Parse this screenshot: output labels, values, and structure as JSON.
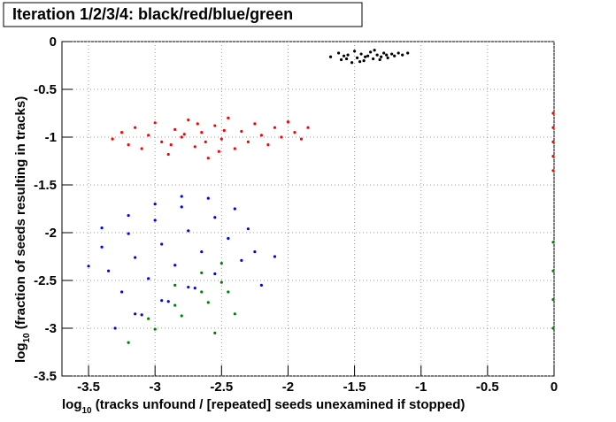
{
  "chart_data": {
    "type": "scatter",
    "title": "Iteration 1/2/3/4: black/red/blue/green",
    "x_label": {
      "base": "log",
      "sub": "10",
      "text": " (tracks unfound / [repeated] seeds unexamined if stopped)"
    },
    "y_label": {
      "base": "log",
      "sub": "10",
      "text": " (fraction of seeds resulting in tracks)"
    },
    "xlim": [
      -3.7,
      0
    ],
    "ylim": [
      -3.5,
      0
    ],
    "xticks": [
      -3.5,
      -3,
      -2.5,
      -2,
      -1.5,
      -1,
      -0.5,
      0
    ],
    "yticks": [
      0,
      -0.5,
      -1,
      -1.5,
      -2,
      -2.5,
      -3,
      -3.5
    ],
    "grid": true,
    "series": [
      {
        "color": "#000000",
        "x": [
          -1.68,
          -1.62,
          -1.6,
          -1.55,
          -1.52,
          -1.5,
          -1.48,
          -1.45,
          -1.43,
          -1.4,
          -1.38,
          -1.36,
          -1.33,
          -1.3,
          -1.28,
          -1.25,
          -1.22,
          -1.2,
          -1.17,
          -1.14,
          -1.1,
          -1.56,
          -1.46,
          -1.35,
          -1.42,
          -1.31,
          -1.58,
          -1.26
        ],
        "y": [
          -0.16,
          -0.12,
          -0.19,
          -0.14,
          -0.22,
          -0.1,
          -0.17,
          -0.13,
          -0.2,
          -0.15,
          -0.11,
          -0.18,
          -0.14,
          -0.16,
          -0.12,
          -0.17,
          -0.13,
          -0.15,
          -0.12,
          -0.14,
          -0.12,
          -0.18,
          -0.21,
          -0.09,
          -0.16,
          -0.19,
          -0.15,
          -0.14
        ]
      },
      {
        "color": "#ff0000",
        "x": [
          -3.32,
          -3.25,
          -3.2,
          -3.15,
          -3.1,
          -3.05,
          -3,
          -2.95,
          -2.9,
          -2.85,
          -2.8,
          -2.75,
          -2.7,
          -2.65,
          -2.6,
          -2.55,
          -2.5,
          -2.45,
          -2.4,
          -2.35,
          -2.3,
          -2.25,
          -2.2,
          -2.15,
          -2.1,
          -2.05,
          -2,
          -1.95,
          -1.9,
          -1.85,
          -2.78,
          -2.62,
          -2.48,
          -2.88,
          -2.52,
          -2.68,
          0,
          0,
          0,
          0,
          0
        ],
        "y": [
          -1.02,
          -0.95,
          -1.08,
          -0.9,
          -1.12,
          -0.98,
          -0.85,
          -1.05,
          -1.18,
          -0.92,
          -1,
          -0.82,
          -1.1,
          -0.95,
          -1.22,
          -0.88,
          -1.02,
          -0.8,
          -1.12,
          -0.94,
          -1.05,
          -0.86,
          -0.98,
          -1.08,
          -0.9,
          -1,
          -0.84,
          -0.95,
          -1.02,
          -0.9,
          -0.97,
          -1.05,
          -0.93,
          -1.08,
          -1.15,
          -0.86,
          -0.75,
          -0.9,
          -1.05,
          -1.2,
          -1.35
        ]
      },
      {
        "color": "#0000ff",
        "x": [
          -3.4,
          -3.2,
          -3,
          -2.8,
          -3.4,
          -3.2,
          -3,
          -2.8,
          -2.6,
          -3.35,
          -3.15,
          -2.95,
          -2.75,
          -2.55,
          -2.4,
          -3.25,
          -3.05,
          -2.85,
          -2.65,
          -2.45,
          -2.3,
          -3.15,
          -2.95,
          -2.75,
          -2.55,
          -2.35,
          -2.25,
          -3.3,
          -3.1,
          -2.9,
          -2.7,
          -3.5,
          -2.2,
          -2.1
        ],
        "y": [
          -1.95,
          -1.82,
          -1.7,
          -1.62,
          -2.15,
          -2.01,
          -1.87,
          -1.73,
          -1.64,
          -2.4,
          -2.26,
          -2.12,
          -1.98,
          -1.84,
          -1.75,
          -2.62,
          -2.48,
          -2.34,
          -2.2,
          -2.06,
          -1.96,
          -2.85,
          -2.71,
          -2.57,
          -2.43,
          -2.29,
          -2.2,
          -3,
          -2.86,
          -2.72,
          -2.58,
          -2.35,
          -2.55,
          -2.25
        ]
      },
      {
        "color": "#008000",
        "x": [
          -3.2,
          -3,
          -2.8,
          -2.6,
          -2.45,
          -3.05,
          -2.85,
          -2.65,
          -2.5,
          -2.85,
          -2.65,
          -2.5,
          -2.4,
          -2.55,
          0,
          0,
          0,
          0
        ],
        "y": [
          -3.15,
          -3.01,
          -2.87,
          -2.73,
          -2.62,
          -2.9,
          -2.76,
          -2.62,
          -2.52,
          -2.55,
          -2.42,
          -2.32,
          -2.85,
          -3.05,
          -2.1,
          -2.4,
          -2.7,
          -3
        ]
      }
    ]
  }
}
